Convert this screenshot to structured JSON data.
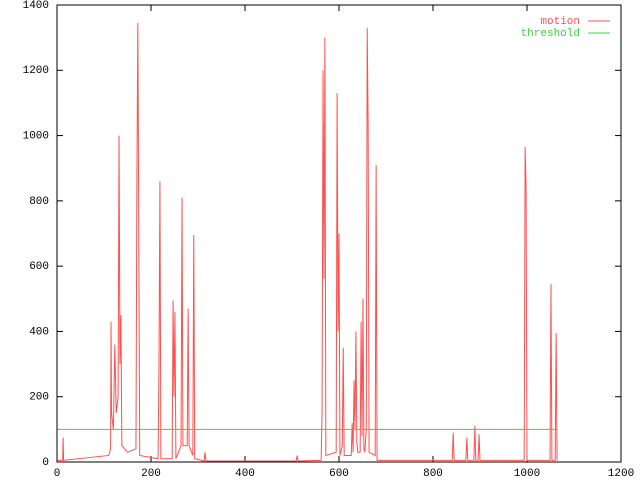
{
  "chart_data": {
    "type": "line",
    "xlim": [
      0,
      1200
    ],
    "xticks": [
      0,
      200,
      400,
      600,
      800,
      1000,
      1200
    ],
    "ylim": [
      0,
      1400
    ],
    "yticks": [
      0,
      200,
      400,
      600,
      800,
      1000,
      1200,
      1400
    ],
    "legend": "top-right",
    "series": [
      {
        "name": "motion",
        "color": "#ff5050",
        "x": [
          0,
          12,
          13,
          14,
          110,
          114,
          115,
          116,
          120,
          123,
          126,
          130,
          132,
          134,
          136,
          138,
          150,
          168,
          170,
          172,
          174,
          176,
          215,
          217,
          219,
          221,
          245,
          247,
          249,
          251,
          253,
          264,
          266,
          268,
          277,
          279,
          281,
          289,
          291,
          293,
          313,
          315,
          317,
          509,
          511,
          513,
          562,
          564,
          566,
          568,
          570,
          572,
          594,
          596,
          598,
          600,
          602,
          607,
          609,
          611,
          626,
          628,
          630,
          632,
          634,
          636,
          638,
          640,
          645,
          647,
          649,
          651,
          653,
          655,
          658,
          660,
          662,
          664,
          677,
          679,
          681,
          841,
          843,
          845,
          870,
          872,
          874,
          887,
          889,
          891,
          896,
          898,
          900,
          994,
          996,
          998,
          1000,
          1049,
          1051,
          1053,
          1060,
          1062,
          1064
        ],
        "values": [
          5,
          5,
          75,
          5,
          20,
          40,
          430,
          150,
          100,
          360,
          150,
          200,
          1000,
          300,
          450,
          50,
          30,
          40,
          870,
          1345,
          700,
          20,
          10,
          300,
          860,
          10,
          10,
          495,
          200,
          460,
          10,
          50,
          810,
          50,
          50,
          470,
          50,
          20,
          695,
          10,
          3,
          30,
          3,
          3,
          20,
          3,
          5,
          150,
          1200,
          560,
          1300,
          20,
          30,
          1130,
          400,
          700,
          20,
          50,
          350,
          20,
          20,
          120,
          30,
          250,
          100,
          400,
          60,
          30,
          30,
          430,
          80,
          500,
          40,
          30,
          100,
          1330,
          1030,
          30,
          20,
          910,
          5,
          5,
          90,
          5,
          5,
          75,
          5,
          5,
          110,
          5,
          5,
          85,
          5,
          5,
          965,
          850,
          5,
          5,
          545,
          5,
          5,
          395,
          5
        ]
      },
      {
        "name": "threshold",
        "color": "#40d040",
        "x": [
          0,
          1064
        ],
        "values": [
          100,
          100
        ]
      }
    ]
  }
}
